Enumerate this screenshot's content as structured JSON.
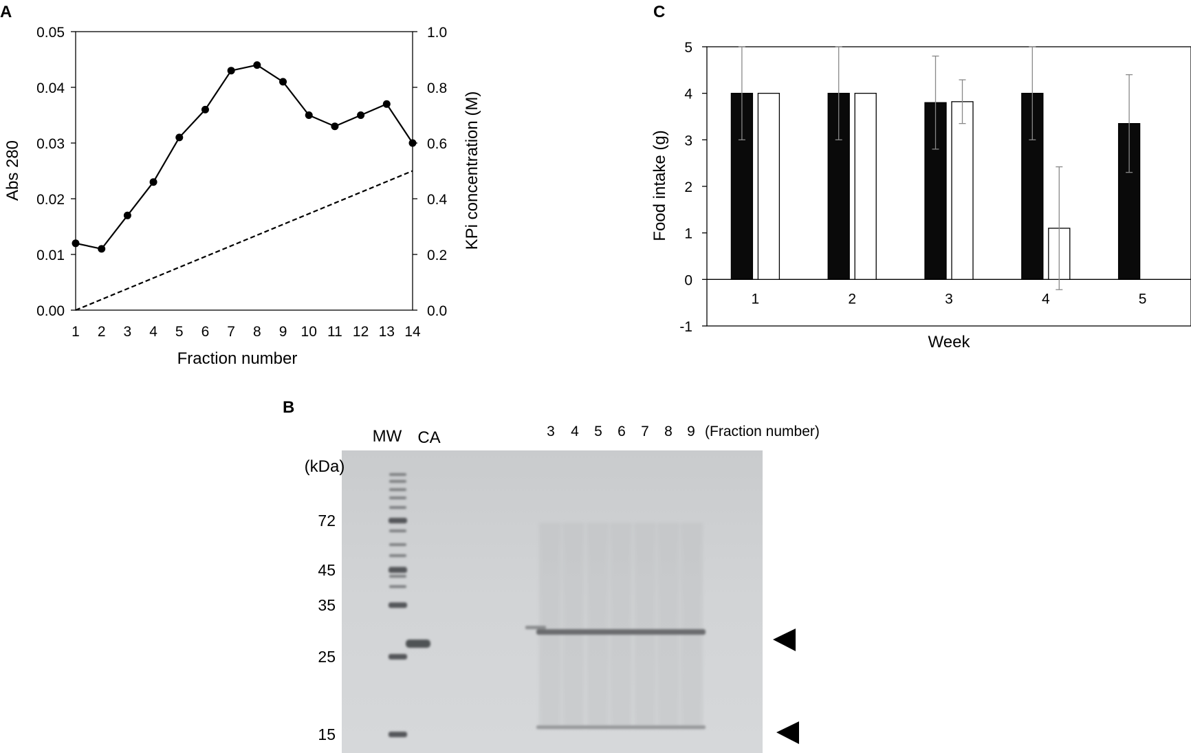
{
  "panels": {
    "a_label": "A",
    "b_label": "B",
    "c_label": "C"
  },
  "chart_data": [
    {
      "panel": "A",
      "type": "line",
      "xlabel": "Fraction number",
      "ylabel": "Abs 280",
      "y2label": "KPi concentration (M)",
      "xlim": [
        1,
        14
      ],
      "ylim": [
        0,
        0.05
      ],
      "y2lim": [
        0,
        1.0
      ],
      "x": [
        1,
        2,
        3,
        4,
        5,
        6,
        7,
        8,
        9,
        10,
        11,
        12,
        13,
        14
      ],
      "x_ticks": [
        "1",
        "2",
        "3",
        "4",
        "5",
        "6",
        "7",
        "8",
        "9",
        "10",
        "11",
        "12",
        "13",
        "14"
      ],
      "y_ticks": [
        "0.00",
        "0.01",
        "0.02",
        "0.03",
        "0.04",
        "0.05"
      ],
      "y2_ticks": [
        "0.0",
        "0.2",
        "0.4",
        "0.6",
        "0.8",
        "1.0"
      ],
      "series": [
        {
          "values": [
            0.012,
            0.011,
            0.017,
            0.023,
            0.031,
            0.036,
            0.043,
            0.044,
            0.041,
            0.035,
            0.033,
            0.035,
            0.037,
            0.03
          ],
          "style": "solid-markers",
          "axis": "left",
          "color": "#000000"
        },
        {
          "values": [
            0.0,
            0.5
          ],
          "x": [
            1,
            14
          ],
          "style": "dashed",
          "axis": "right",
          "color": "#000000"
        }
      ],
      "grid": false
    },
    {
      "panel": "B",
      "type": "gel",
      "unit_label": "(kDa)",
      "lane_labels": [
        "MW",
        "CA"
      ],
      "fraction_lanes": [
        "3",
        "4",
        "5",
        "6",
        "7",
        "8",
        "9"
      ],
      "fraction_caption": "(Fraction number)",
      "mw_markers": [
        "72",
        "45",
        "35",
        "25",
        "15"
      ]
    },
    {
      "panel": "C",
      "type": "bar",
      "xlabel": "Week",
      "ylabel": "Food intake (g)",
      "ylim": [
        -1,
        5
      ],
      "y_ticks": [
        "5",
        "4",
        "3",
        "2",
        "1",
        "0",
        "-1"
      ],
      "categories": [
        "1",
        "2",
        "3",
        "4",
        "5"
      ],
      "series": [
        {
          "values": [
            4.0,
            4.0,
            3.8,
            4.0,
            3.35
          ],
          "errors": [
            1.0,
            1.0,
            1.0,
            1.0,
            1.05
          ],
          "color": "#0a0a0a"
        },
        {
          "values": [
            4.0,
            4.0,
            3.82,
            1.1,
            null
          ],
          "errors": [
            0.0,
            0.0,
            0.47,
            1.32,
            null
          ],
          "color": "#ffffff"
        }
      ],
      "grid": false
    }
  ]
}
